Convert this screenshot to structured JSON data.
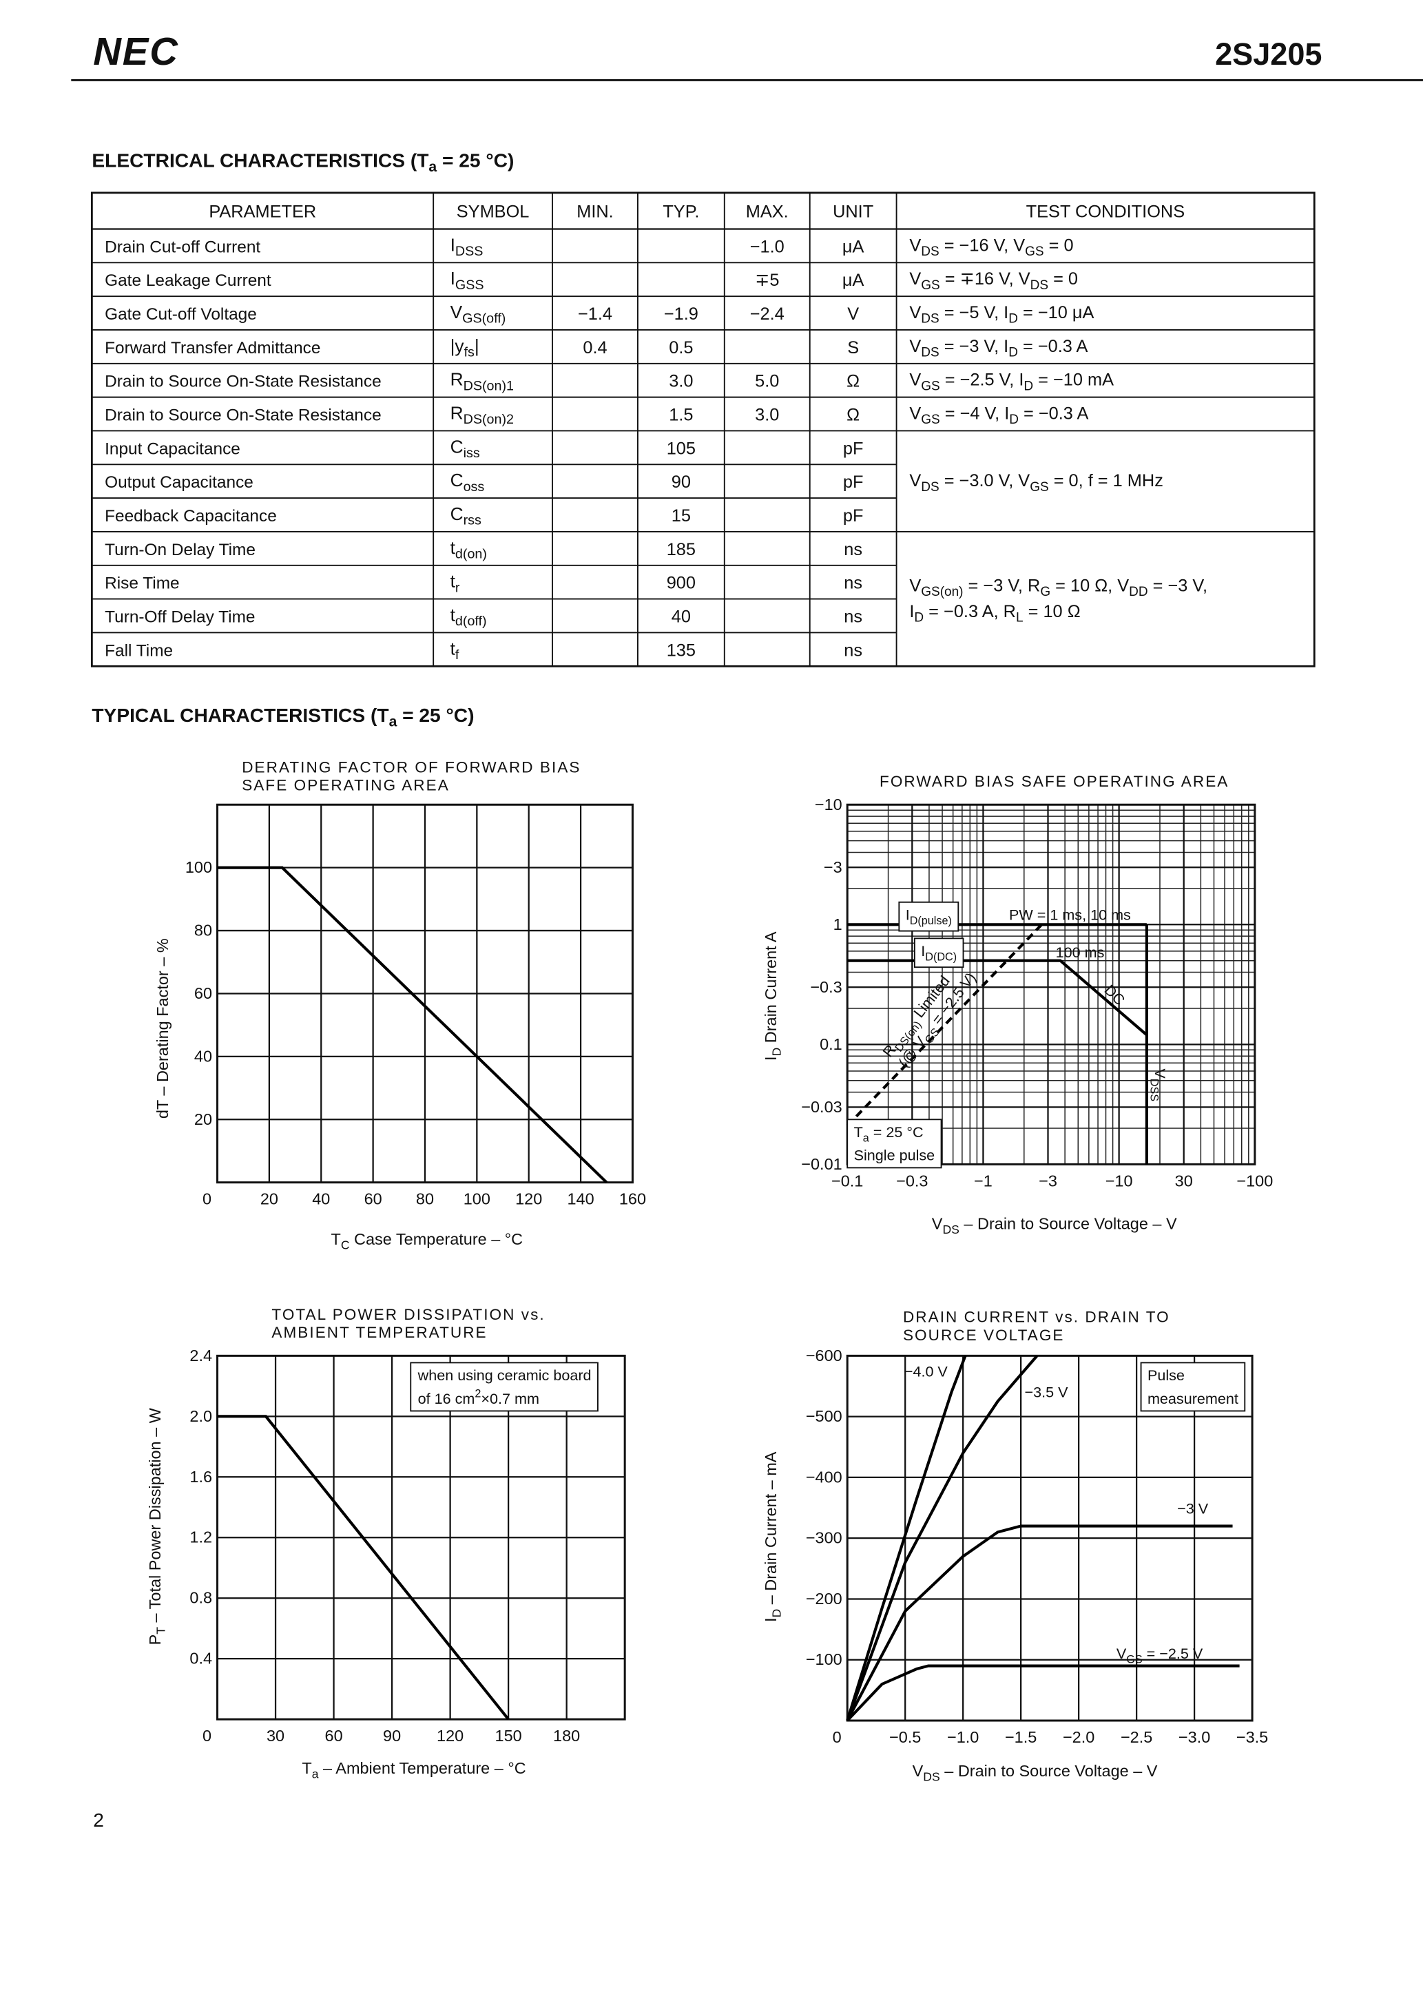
{
  "header": {
    "brand": "NEC",
    "part_number": "2SJ205"
  },
  "electrical": {
    "title": [
      "ELECTRICAL CHARACTERISTICS (T",
      "a",
      " = 25 °C)"
    ],
    "table": {
      "headers": [
        "PARAMETER",
        "SYMBOL",
        "MIN.",
        "TYP.",
        "MAX.",
        "UNIT",
        "TEST CONDITIONS"
      ],
      "rows": [
        {
          "parameter": "Drain Cut-off Current",
          "symbol": [
            "I",
            "DSS"
          ],
          "max": "−1.0",
          "unit": "μA"
        },
        {
          "parameter": "Gate Leakage Current",
          "symbol": [
            "I",
            "GSS"
          ],
          "max": "∓5",
          "unit": "μA"
        },
        {
          "parameter": "Gate Cut-off Voltage",
          "symbol": [
            "V",
            "GS(off)"
          ],
          "min": "−1.4",
          "typ": "−1.9",
          "max": "−2.4",
          "unit": "V"
        },
        {
          "parameter": "Forward Transfer Admittance",
          "symbol": [
            "|y",
            "fs",
            "|"
          ],
          "min": "0.4",
          "typ": "0.5",
          "unit": "S"
        },
        {
          "parameter": "Drain to Source On-State Resistance",
          "symbol": [
            "R",
            "DS(on)1"
          ],
          "typ": "3.0",
          "max": "5.0",
          "unit": "Ω"
        },
        {
          "parameter": "Drain to Source On-State Resistance",
          "symbol": [
            "R",
            "DS(on)2"
          ],
          "typ": "1.5",
          "max": "3.0",
          "unit": "Ω"
        },
        {
          "parameter": "Input Capacitance",
          "symbol": [
            "C",
            "iss"
          ],
          "typ": "105",
          "unit": "pF"
        },
        {
          "parameter": "Output Capacitance",
          "symbol": [
            "C",
            "oss"
          ],
          "typ": "90",
          "unit": "pF"
        },
        {
          "parameter": "Feedback Capacitance",
          "symbol": [
            "C",
            "rss"
          ],
          "typ": "15",
          "unit": "pF"
        },
        {
          "parameter": "Turn-On Delay Time",
          "symbol": [
            "t",
            "d(on)"
          ],
          "typ": "185",
          "unit": "ns"
        },
        {
          "parameter": "Rise Time",
          "symbol": [
            "t",
            "r"
          ],
          "typ": "900",
          "unit": "ns"
        },
        {
          "parameter": "Turn-Off Delay Time",
          "symbol": [
            "t",
            "d(off)"
          ],
          "typ": "40",
          "unit": "ns"
        },
        {
          "parameter": "Fall Time",
          "symbol": [
            "t",
            "f"
          ],
          "typ": "135",
          "unit": "ns"
        }
      ],
      "conditions": [
        {
          "rowspan": 1,
          "lines": [
            [
              "V",
              "DS",
              " = −16 V, V",
              "GS",
              " = 0"
            ]
          ]
        },
        {
          "rowspan": 1,
          "lines": [
            [
              "V",
              "GS",
              " = ∓16 V, V",
              "DS",
              " = 0"
            ]
          ]
        },
        {
          "rowspan": 1,
          "lines": [
            [
              "V",
              "DS",
              " = −5 V, I",
              "D",
              " = −10 μA"
            ]
          ]
        },
        {
          "rowspan": 1,
          "lines": [
            [
              "V",
              "DS",
              " = −3 V, I",
              "D",
              " = −0.3 A"
            ]
          ]
        },
        {
          "rowspan": 1,
          "lines": [
            [
              "V",
              "GS",
              " = −2.5 V, I",
              "D",
              " = −10 mA"
            ]
          ]
        },
        {
          "rowspan": 1,
          "lines": [
            [
              "V",
              "GS",
              " = −4 V, I",
              "D",
              " = −0.3 A"
            ]
          ]
        },
        {
          "rowspan": 3,
          "lines": [
            [
              "V",
              "DS",
              " = −3.0 V, V",
              "GS",
              " = 0, f = 1 MHz"
            ]
          ]
        },
        {
          "rowspan": 4,
          "lines": [
            [
              "V",
              "GS(on)",
              " = −3 V, R",
              "G",
              " = 10 Ω, V",
              "DD",
              " = −3 V,"
            ],
            [
              "I",
              "D",
              " = −0.3 A, R",
              "L",
              " = 10 Ω"
            ]
          ]
        }
      ]
    }
  },
  "typical": {
    "title": [
      "TYPICAL CHARACTERISTICS (T",
      "a",
      " = 25 °C)"
    ],
    "charts": [
      {
        "type": "line",
        "title": [
          "DERATING FACTOR OF FORWARD BIAS",
          "SAFE OPERATING AREA"
        ],
        "xlabel": [
          "T",
          "C",
          "  Case Temperature – °C"
        ],
        "ylabel": [
          "dT – Derating Factor – %"
        ],
        "xlim": [
          0,
          160
        ],
        "ylim": [
          0,
          120
        ],
        "xticks": [
          0,
          20,
          40,
          60,
          80,
          100,
          120,
          140,
          160
        ],
        "yticks": [
          20,
          40,
          60,
          80,
          100
        ],
        "grid": true,
        "log": false,
        "color": "#000000",
        "series": [
          {
            "x": [
              0,
              25,
              150
            ],
            "y": [
              100,
              100,
              0
            ]
          }
        ]
      },
      {
        "type": "line",
        "title": [
          "FORWARD BIAS SAFE OPERATING AREA"
        ],
        "xlabel": [
          "V",
          "DS",
          " – Drain to Source Voltage – V"
        ],
        "ylabel": [
          "I",
          "D",
          "  Drain Current  A"
        ],
        "xlim": [
          -0.1,
          -100
        ],
        "ylim": [
          -0.01,
          -10
        ],
        "xticks": [
          {
            "value": -0.1,
            "label": "−0.1"
          },
          {
            "value": -0.3,
            "label": "−0.3"
          },
          {
            "value": -1,
            "label": "−1"
          },
          {
            "value": -3,
            "label": "−3"
          },
          {
            "value": -10,
            "label": "−10"
          },
          30,
          {
            "value": -100,
            "label": "−100"
          }
        ],
        "yticks": [
          {
            "value": -0.01,
            "label": "−0.01"
          },
          {
            "value": -0.03,
            "label": "−0.03"
          },
          0.1,
          {
            "value": -0.3,
            "label": "−0.3"
          },
          1,
          {
            "value": -3,
            "label": "−3"
          },
          {
            "value": -10,
            "label": "−10"
          }
        ],
        "grid": true,
        "log": true,
        "color": "#000000",
        "series": [
          {
            "x": [
              -0.1,
              -16
            ],
            "y": [
              -1,
              -1
            ]
          },
          {
            "x": [
              -0.1,
              -3.7,
              -16
            ],
            "y": [
              -0.5,
              -0.5,
              -0.12
            ]
          },
          {
            "x": [
              -16,
              -16
            ],
            "y": [
              -0.01,
              -1
            ]
          },
          {
            "x": [
              -0.1,
              -2.7
            ],
            "y": [
              -0.021,
              -1
            ],
            "dash": true
          }
        ],
        "annotations": [
          {
            "lines": [
              [
                "I",
                "D(pulse)"
              ]
            ],
            "boxed": true
          },
          {
            "lines": [
              [
                "PW = 1 ms, 10 ms"
              ]
            ]
          },
          {
            "lines": [
              [
                "I",
                "D(DC)"
              ]
            ],
            "boxed": true
          },
          {
            "lines": [
              [
                "100 ms"
              ]
            ]
          },
          {
            "lines": [
              [
                "DC"
              ]
            ]
          },
          {
            "lines": [
              [
                "R",
                "DS(on)",
                " Limited"
              ]
            ]
          },
          {
            "lines": [
              [
                "(@ V",
                "GS",
                " = −2.5 V)"
              ]
            ]
          },
          {
            "lines": [
              [
                "V",
                "DSS"
              ]
            ]
          },
          {
            "lines": [
              [
                "T",
                "a",
                " = 25 °C"
              ],
              [
                "Single pulse"
              ]
            ],
            "boxed": true
          }
        ]
      },
      {
        "type": "line",
        "title": [
          "TOTAL POWER DISSIPATION vs.",
          "AMBIENT TEMPERATURE"
        ],
        "xlabel": [
          "T",
          "a",
          " – Ambient Temperature – °C"
        ],
        "ylabel": [
          "P",
          "T",
          " – Total Power Dissipation – W"
        ],
        "xlim": [
          0,
          210
        ],
        "ylim": [
          0,
          2.4
        ],
        "xticks": [
          0,
          30,
          60,
          90,
          120,
          150,
          180
        ],
        "yticks": [
          0.4,
          0.8,
          1.2,
          1.6,
          {
            "value": 2,
            "label": "2.0"
          },
          2.4
        ],
        "grid": true,
        "log": false,
        "color": "#000000",
        "series": [
          {
            "x": [
              0,
              25,
              150
            ],
            "y": [
              2,
              2,
              0
            ]
          }
        ],
        "annotations": [
          {
            "lines": [
              [
                "when using ceramic board"
              ],
              [
                "of 16 cm",
                "2",
                "×0.7 mm"
              ]
            ],
            "boxed": true,
            "script": "super"
          }
        ]
      },
      {
        "type": "line",
        "title": [
          "DRAIN CURRENT vs. DRAIN TO",
          "SOURCE VOLTAGE"
        ],
        "xlabel": [
          "V",
          "DS",
          " – Drain to Source Voltage – V"
        ],
        "ylabel": [
          "I",
          "D",
          " – Drain Current – mA"
        ],
        "xlim": [
          0,
          -3.5
        ],
        "ylim": [
          0,
          -600
        ],
        "xticks": [
          0,
          {
            "value": -0.5,
            "label": "−0.5"
          },
          {
            "value": -1,
            "label": "−1.0"
          },
          {
            "value": -1.5,
            "label": "−1.5"
          },
          {
            "value": -2,
            "label": "−2.0"
          },
          {
            "value": -2.5,
            "label": "−2.5"
          },
          {
            "value": -3,
            "label": "−3.0"
          },
          {
            "value": -3.5,
            "label": "−3.5"
          }
        ],
        "yticks": [
          {
            "value": -100,
            "label": "−100"
          },
          {
            "value": -200,
            "label": "−200"
          },
          {
            "value": -300,
            "label": "−300"
          },
          {
            "value": -400,
            "label": "−400"
          },
          {
            "value": -500,
            "label": "−500"
          },
          {
            "value": -600,
            "label": "−600"
          }
        ],
        "grid": true,
        "log": false,
        "color": "#000000",
        "series": [
          {
            "x": [
              0,
              -0.3,
              -0.6,
              -0.9,
              -1.02
            ],
            "y": [
              0,
              -185,
              -365,
              -540,
              -600
            ]
          },
          {
            "x": [
              0,
              -0.5,
              -1.0,
              -1.3,
              -1.64
            ],
            "y": [
              0,
              -260,
              -440,
              -525,
              -600
            ]
          },
          {
            "x": [
              0,
              -0.5,
              -1.0,
              -1.3,
              -1.5,
              -3.33
            ],
            "y": [
              0,
              -180,
              -270,
              -310,
              -320,
              -320
            ]
          },
          {
            "x": [
              0,
              -0.3,
              -0.6,
              -0.7,
              -3.39
            ],
            "y": [
              0,
              -60,
              -85,
              -90,
              -90
            ]
          }
        ],
        "annotations": [
          {
            "lines": [
              [
                "−4.0 V"
              ]
            ]
          },
          {
            "lines": [
              [
                "−3.5 V"
              ]
            ]
          },
          {
            "lines": [
              [
                "−3 V"
              ]
            ]
          },
          {
            "lines": [
              [
                "V",
                "GS",
                " = −2.5 V"
              ]
            ]
          },
          {
            "lines": [
              [
                "Pulse"
              ],
              [
                "measurement"
              ]
            ],
            "boxed": true
          }
        ]
      }
    ]
  },
  "page_number": "2"
}
